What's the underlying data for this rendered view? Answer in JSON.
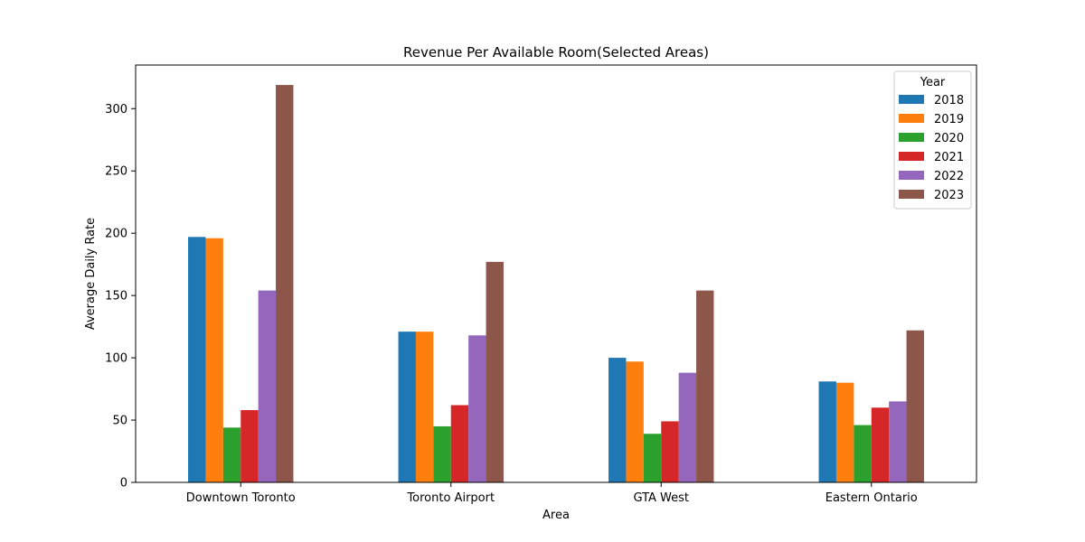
{
  "chart_data": {
    "type": "bar",
    "title": "Revenue Per Available Room(Selected Areas)",
    "xlabel": "Area",
    "ylabel": "Average Daily Rate",
    "categories": [
      "Downtown Toronto",
      "Toronto Airport",
      "GTA West",
      "Eastern Ontario"
    ],
    "ylim": [
      0,
      335
    ],
    "yticks": [
      0,
      50,
      100,
      150,
      200,
      250,
      300
    ],
    "grid": false,
    "legend": {
      "title": "Year",
      "placement": "top-right"
    },
    "series": [
      {
        "name": "2018",
        "color": "#1f77b4",
        "values": [
          197,
          121,
          100,
          81
        ]
      },
      {
        "name": "2019",
        "color": "#ff7f0e",
        "values": [
          196,
          121,
          97,
          80
        ]
      },
      {
        "name": "2020",
        "color": "#2ca02c",
        "values": [
          44,
          45,
          39,
          46
        ]
      },
      {
        "name": "2021",
        "color": "#d62728",
        "values": [
          58,
          62,
          49,
          60
        ]
      },
      {
        "name": "2022",
        "color": "#9467bd",
        "values": [
          154,
          118,
          88,
          65
        ]
      },
      {
        "name": "2023",
        "color": "#8c564b",
        "values": [
          319,
          177,
          154,
          122
        ]
      }
    ]
  }
}
